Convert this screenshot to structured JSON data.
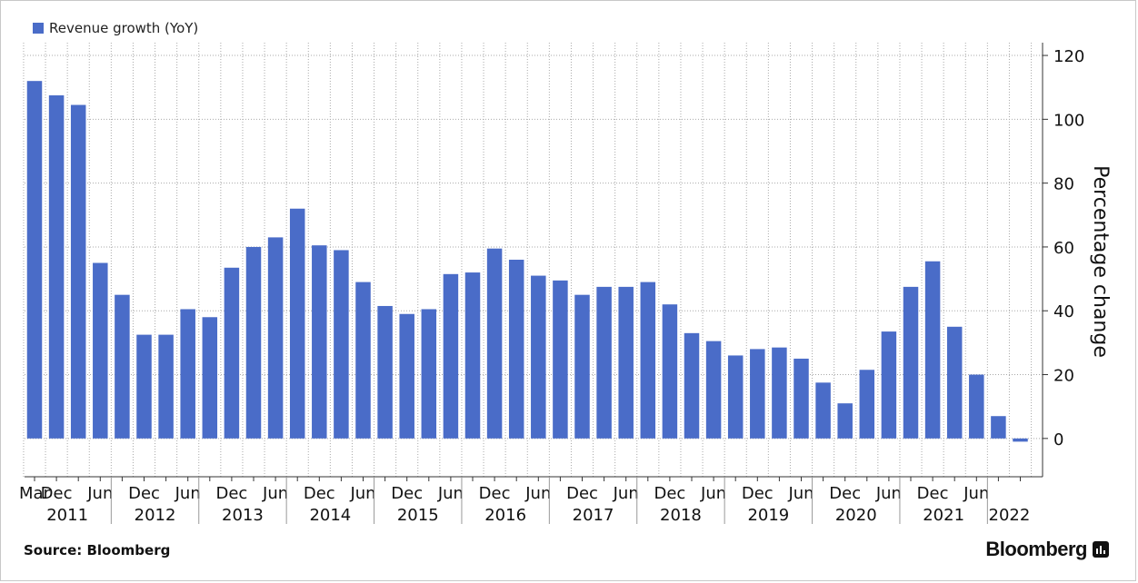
{
  "legend": {
    "label": "Revenue growth (YoY)",
    "color": "#4a6cc8"
  },
  "footer": {
    "source": "Source: Bloomberg",
    "brand": "Bloomberg",
    "brand_icon": "bloomberg-terminal-icon"
  },
  "chart_data": {
    "type": "bar",
    "series": [
      {
        "name": "Revenue growth (YoY)",
        "x": [
          "2011-03",
          "2011-06",
          "2011-09",
          "2011-12",
          "2012-03",
          "2012-06",
          "2012-09",
          "2012-12",
          "2013-03",
          "2013-06",
          "2013-09",
          "2013-12",
          "2014-03",
          "2014-06",
          "2014-09",
          "2014-12",
          "2015-03",
          "2015-06",
          "2015-09",
          "2015-12",
          "2016-03",
          "2016-06",
          "2016-09",
          "2016-12",
          "2017-03",
          "2017-06",
          "2017-09",
          "2017-12",
          "2018-03",
          "2018-06",
          "2018-09",
          "2018-12",
          "2019-03",
          "2019-06",
          "2019-09",
          "2019-12",
          "2020-03",
          "2020-06",
          "2020-09",
          "2020-12",
          "2021-03",
          "2021-06",
          "2021-09",
          "2021-12",
          "2022-03",
          "2022-06"
        ],
        "values": [
          112,
          107.5,
          104.5,
          55,
          45,
          32.5,
          32.5,
          40.5,
          38,
          53.5,
          60,
          63,
          72,
          60.5,
          59,
          49,
          41.5,
          39,
          40.5,
          51.5,
          52,
          59.5,
          56,
          51,
          49.5,
          45,
          47.5,
          47.5,
          49,
          42,
          33,
          30.5,
          26,
          28,
          28.5,
          25,
          17.5,
          11,
          21.5,
          33.5,
          47.5,
          55.5,
          35,
          20,
          7,
          -1
        ]
      }
    ],
    "ylabel": "Percentage change",
    "ylim": [
      -12,
      124
    ],
    "yticks": [
      0,
      20,
      40,
      60,
      80,
      100,
      120
    ],
    "y_axis_side": "right",
    "grid": true,
    "legend_position": "top-left",
    "x_month_labels": [
      "Mar",
      "Dec",
      "Jun",
      "Dec",
      "Jun",
      "Dec",
      "Jun",
      "Dec",
      "Jun",
      "Dec",
      "Jun",
      "Dec",
      "Jun",
      "Dec",
      "Jun",
      "Dec",
      "Jun",
      "Dec",
      "Jun",
      "Dec",
      "Jun",
      "Dec",
      "Jun"
    ],
    "x_year_labels": [
      "2011",
      "2012",
      "2013",
      "2014",
      "2015",
      "2016",
      "2017",
      "2018",
      "2019",
      "2020",
      "2021",
      "2022"
    ]
  }
}
